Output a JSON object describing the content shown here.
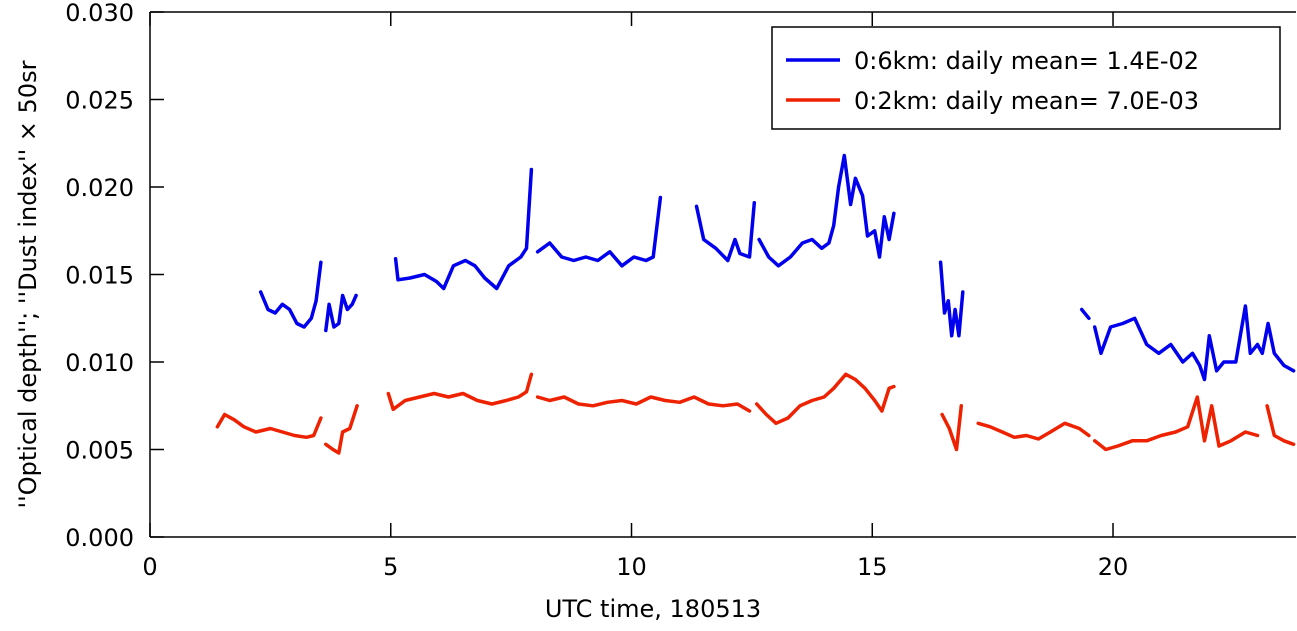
{
  "chart_data": {
    "type": "line",
    "title": "",
    "xlabel": "UTC time, 180513",
    "ylabel": "''Optical depth''; ''Dust index'' × 50sr",
    "xlim": [
      0,
      23.8
    ],
    "ylim": [
      0,
      0.03
    ],
    "xticks": [
      0,
      5,
      10,
      15,
      20
    ],
    "yticks": [
      0.0,
      0.005,
      0.01,
      0.015,
      0.02,
      0.025,
      0.03
    ],
    "xtick_labels": [
      "0",
      "5",
      "10",
      "15",
      "20"
    ],
    "ytick_labels": [
      "0.000",
      "0.005",
      "0.010",
      "0.015",
      "0.020",
      "0.025",
      "0.030"
    ],
    "legend_position": "top-right",
    "grid": false,
    "series": [
      {
        "name": "0:6km: daily mean= 1.4E-02",
        "color": "#0000ee",
        "segments": [
          [
            [
              2.3,
              0.014
            ],
            [
              2.45,
              0.013
            ],
            [
              2.6,
              0.0128
            ],
            [
              2.75,
              0.0133
            ],
            [
              2.9,
              0.013
            ],
            [
              3.05,
              0.0122
            ],
            [
              3.2,
              0.012
            ],
            [
              3.35,
              0.0125
            ],
            [
              3.45,
              0.0135
            ],
            [
              3.55,
              0.0157
            ]
          ],
          [
            [
              3.65,
              0.0118
            ],
            [
              3.72,
              0.0133
            ],
            [
              3.82,
              0.012
            ],
            [
              3.92,
              0.0122
            ],
            [
              4.0,
              0.0138
            ],
            [
              4.1,
              0.013
            ],
            [
              4.2,
              0.0133
            ],
            [
              4.28,
              0.0138
            ]
          ],
          [
            [
              5.1,
              0.0159
            ],
            [
              5.15,
              0.0147
            ],
            [
              5.4,
              0.0148
            ],
            [
              5.7,
              0.015
            ],
            [
              5.95,
              0.0146
            ],
            [
              6.1,
              0.0142
            ],
            [
              6.3,
              0.0155
            ],
            [
              6.55,
              0.0158
            ],
            [
              6.75,
              0.0155
            ],
            [
              6.95,
              0.0148
            ],
            [
              7.2,
              0.0142
            ],
            [
              7.45,
              0.0155
            ],
            [
              7.7,
              0.016
            ],
            [
              7.82,
              0.0165
            ],
            [
              7.92,
              0.021
            ]
          ],
          [
            [
              8.05,
              0.0163
            ],
            [
              8.3,
              0.0168
            ],
            [
              8.55,
              0.016
            ],
            [
              8.8,
              0.0158
            ],
            [
              9.05,
              0.016
            ],
            [
              9.3,
              0.0158
            ],
            [
              9.55,
              0.0163
            ],
            [
              9.8,
              0.0155
            ],
            [
              10.05,
              0.016
            ],
            [
              10.3,
              0.0158
            ],
            [
              10.45,
              0.016
            ],
            [
              10.6,
              0.0194
            ]
          ],
          [
            [
              11.35,
              0.0189
            ],
            [
              11.5,
              0.017
            ],
            [
              11.75,
              0.0165
            ],
            [
              12.0,
              0.0158
            ],
            [
              12.15,
              0.017
            ],
            [
              12.25,
              0.0162
            ],
            [
              12.45,
              0.016
            ],
            [
              12.55,
              0.0191
            ]
          ],
          [
            [
              12.65,
              0.017
            ],
            [
              12.85,
              0.016
            ],
            [
              13.05,
              0.0155
            ],
            [
              13.3,
              0.016
            ],
            [
              13.55,
              0.0168
            ],
            [
              13.75,
              0.017
            ],
            [
              13.95,
              0.0165
            ],
            [
              14.1,
              0.0168
            ],
            [
              14.2,
              0.0178
            ],
            [
              14.3,
              0.02
            ],
            [
              14.42,
              0.0218
            ],
            [
              14.55,
              0.019
            ],
            [
              14.65,
              0.0205
            ],
            [
              14.8,
              0.0195
            ],
            [
              14.9,
              0.0172
            ],
            [
              15.05,
              0.0175
            ],
            [
              15.15,
              0.016
            ],
            [
              15.25,
              0.0183
            ],
            [
              15.35,
              0.017
            ],
            [
              15.45,
              0.0185
            ]
          ],
          [
            [
              16.42,
              0.0157
            ],
            [
              16.5,
              0.0128
            ],
            [
              16.58,
              0.0135
            ],
            [
              16.65,
              0.0115
            ],
            [
              16.72,
              0.013
            ],
            [
              16.8,
              0.0115
            ],
            [
              16.88,
              0.014
            ]
          ],
          [
            [
              19.35,
              0.013
            ],
            [
              19.5,
              0.0125
            ]
          ],
          [
            [
              19.62,
              0.012
            ],
            [
              19.75,
              0.0105
            ],
            [
              19.95,
              0.012
            ],
            [
              20.2,
              0.0122
            ],
            [
              20.45,
              0.0125
            ],
            [
              20.7,
              0.011
            ],
            [
              20.95,
              0.0105
            ],
            [
              21.2,
              0.011
            ],
            [
              21.45,
              0.01
            ],
            [
              21.65,
              0.0105
            ],
            [
              21.8,
              0.0098
            ],
            [
              21.9,
              0.009
            ],
            [
              22.0,
              0.0115
            ],
            [
              22.15,
              0.0095
            ],
            [
              22.3,
              0.01
            ],
            [
              22.55,
              0.01
            ],
            [
              22.75,
              0.0132
            ],
            [
              22.85,
              0.0105
            ],
            [
              23.0,
              0.011
            ],
            [
              23.1,
              0.0105
            ],
            [
              23.22,
              0.0122
            ],
            [
              23.35,
              0.0105
            ],
            [
              23.55,
              0.0098
            ],
            [
              23.75,
              0.0095
            ]
          ]
        ]
      },
      {
        "name": "0:2km: daily mean= 7.0E-03",
        "color": "#ee2200",
        "segments": [
          [
            [
              1.4,
              0.0063
            ],
            [
              1.55,
              0.007
            ],
            [
              1.75,
              0.0067
            ],
            [
              1.95,
              0.0063
            ],
            [
              2.2,
              0.006
            ],
            [
              2.5,
              0.0062
            ],
            [
              2.75,
              0.006
            ],
            [
              3.0,
              0.0058
            ],
            [
              3.25,
              0.0057
            ],
            [
              3.4,
              0.0058
            ],
            [
              3.55,
              0.0068
            ]
          ],
          [
            [
              3.65,
              0.0053
            ],
            [
              3.8,
              0.005
            ],
            [
              3.92,
              0.0048
            ],
            [
              4.0,
              0.006
            ],
            [
              4.15,
              0.0062
            ],
            [
              4.3,
              0.0075
            ]
          ],
          [
            [
              4.95,
              0.0082
            ],
            [
              5.05,
              0.0073
            ],
            [
              5.3,
              0.0078
            ],
            [
              5.6,
              0.008
            ],
            [
              5.9,
              0.0082
            ],
            [
              6.2,
              0.008
            ],
            [
              6.5,
              0.0082
            ],
            [
              6.8,
              0.0078
            ],
            [
              7.1,
              0.0076
            ],
            [
              7.4,
              0.0078
            ],
            [
              7.65,
              0.008
            ],
            [
              7.82,
              0.0083
            ],
            [
              7.92,
              0.0093
            ]
          ],
          [
            [
              8.05,
              0.008
            ],
            [
              8.3,
              0.0078
            ],
            [
              8.6,
              0.008
            ],
            [
              8.9,
              0.0076
            ],
            [
              9.2,
              0.0075
            ],
            [
              9.5,
              0.0077
            ],
            [
              9.8,
              0.0078
            ],
            [
              10.1,
              0.0076
            ],
            [
              10.4,
              0.008
            ],
            [
              10.7,
              0.0078
            ],
            [
              11.0,
              0.0077
            ],
            [
              11.3,
              0.008
            ],
            [
              11.6,
              0.0076
            ],
            [
              11.9,
              0.0075
            ],
            [
              12.2,
              0.0076
            ],
            [
              12.45,
              0.0072
            ]
          ],
          [
            [
              12.6,
              0.0076
            ],
            [
              12.8,
              0.007
            ],
            [
              13.0,
              0.0065
            ],
            [
              13.25,
              0.0068
            ],
            [
              13.5,
              0.0075
            ],
            [
              13.75,
              0.0078
            ],
            [
              14.0,
              0.008
            ],
            [
              14.2,
              0.0085
            ],
            [
              14.45,
              0.0093
            ],
            [
              14.65,
              0.009
            ],
            [
              14.85,
              0.0085
            ],
            [
              15.05,
              0.0078
            ],
            [
              15.2,
              0.0072
            ],
            [
              15.35,
              0.0085
            ],
            [
              15.45,
              0.0086
            ]
          ],
          [
            [
              16.45,
              0.007
            ],
            [
              16.6,
              0.0062
            ],
            [
              16.75,
              0.005
            ],
            [
              16.85,
              0.0075
            ]
          ],
          [
            [
              17.2,
              0.0065
            ],
            [
              17.45,
              0.0063
            ],
            [
              17.7,
              0.006
            ],
            [
              17.95,
              0.0057
            ],
            [
              18.2,
              0.0058
            ],
            [
              18.45,
              0.0056
            ],
            [
              18.7,
              0.006
            ],
            [
              19.0,
              0.0065
            ],
            [
              19.3,
              0.0062
            ],
            [
              19.5,
              0.0058
            ]
          ],
          [
            [
              19.62,
              0.0055
            ],
            [
              19.85,
              0.005
            ],
            [
              20.1,
              0.0052
            ],
            [
              20.4,
              0.0055
            ],
            [
              20.7,
              0.0055
            ],
            [
              21.0,
              0.0058
            ],
            [
              21.3,
              0.006
            ],
            [
              21.55,
              0.0063
            ],
            [
              21.75,
              0.008
            ],
            [
              21.9,
              0.0055
            ],
            [
              22.05,
              0.0075
            ],
            [
              22.2,
              0.0052
            ],
            [
              22.45,
              0.0055
            ],
            [
              22.75,
              0.006
            ],
            [
              23.0,
              0.0058
            ]
          ],
          [
            [
              23.2,
              0.0075
            ],
            [
              23.35,
              0.0058
            ],
            [
              23.55,
              0.0055
            ],
            [
              23.75,
              0.0053
            ]
          ]
        ]
      }
    ]
  }
}
